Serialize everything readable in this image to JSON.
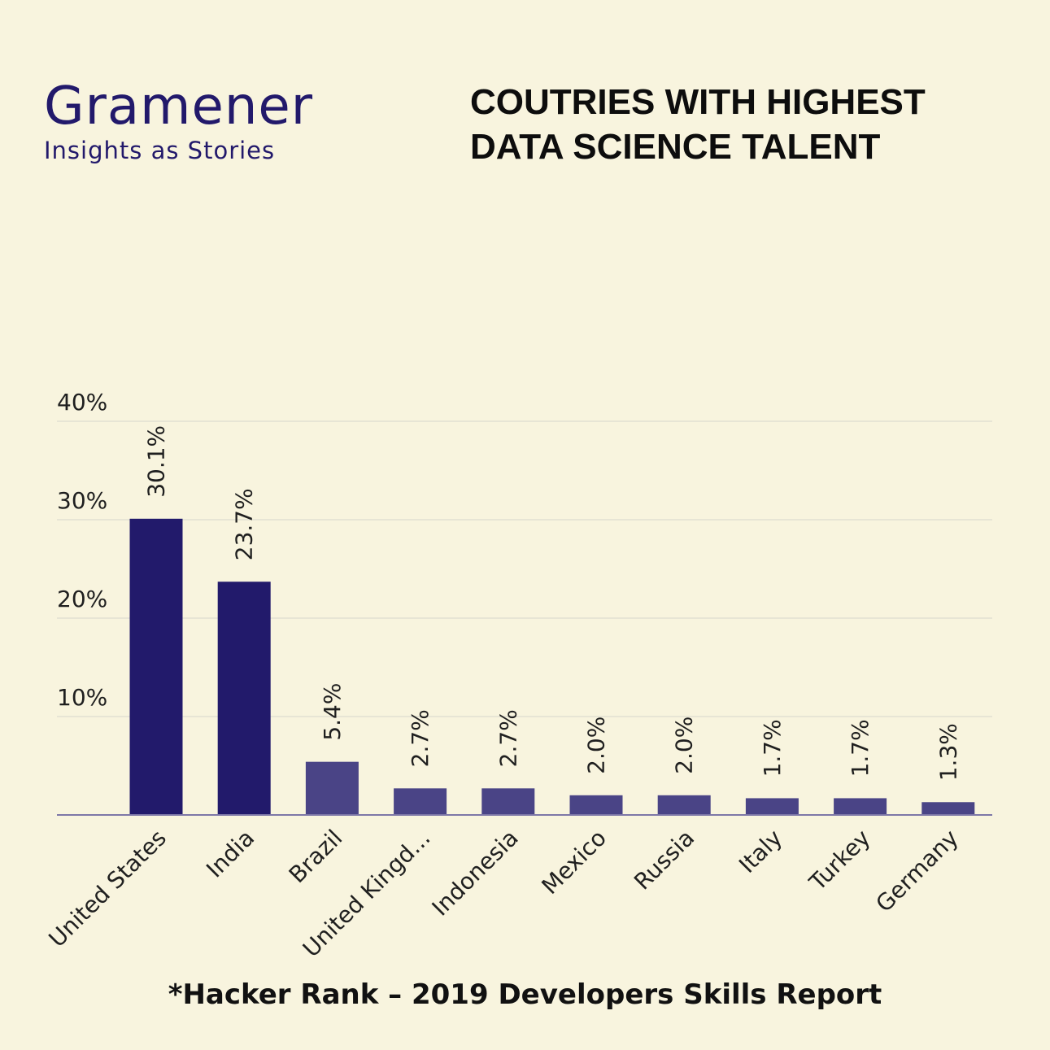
{
  "brand": {
    "name": "Gramener",
    "tagline": "Insights as Stories"
  },
  "headline": {
    "line1": "COUTRIES WITH HIGHEST",
    "line2": "DATA SCIENCE TALENT"
  },
  "source_note": "*Hacker Rank – 2019 Developers Skills Report",
  "colors": {
    "background": "#f8f4de",
    "brand": "#22196b",
    "bar_top": "#221a6b",
    "bar_rest": "#4a4486",
    "gridline": "#d6d6cc",
    "axis": "#7d77a7",
    "text": "#1f1f1f"
  },
  "chart_data": {
    "type": "bar",
    "categories": [
      "United States",
      "India",
      "Brazil",
      "United Kingd...",
      "Indonesia",
      "Mexico",
      "Russia",
      "Italy",
      "Turkey",
      "Germany"
    ],
    "values": [
      30.1,
      23.7,
      5.4,
      2.7,
      2.7,
      2.0,
      2.0,
      1.7,
      1.7,
      1.3
    ],
    "value_labels": [
      "30.1%",
      "23.7%",
      "5.4%",
      "2.7%",
      "2.7%",
      "2.0%",
      "2.0%",
      "1.7%",
      "1.7%",
      "1.3%"
    ],
    "highlighted": [
      true,
      true,
      false,
      false,
      false,
      false,
      false,
      false,
      false,
      false
    ],
    "y_ticks": [
      10,
      20,
      30,
      40
    ],
    "y_tick_labels": [
      "10%",
      "20%",
      "30%",
      "40%"
    ],
    "ylim": [
      0,
      40
    ],
    "grid": true,
    "xlabel": "",
    "ylabel": ""
  }
}
